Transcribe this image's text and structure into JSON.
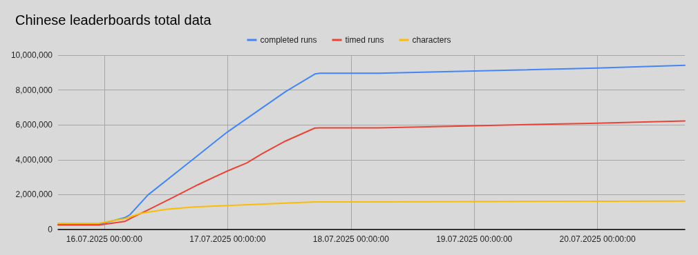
{
  "chart_data": {
    "type": "line",
    "title": "Chinese leaderboards total data",
    "xlim": [
      "2025-07-15T15:00",
      "2025-07-20T17:00"
    ],
    "xticks": [
      {
        "value": "2025-07-16",
        "label": "16.07.2025 00:00:00"
      },
      {
        "value": "2025-07-17",
        "label": "17.07.2025 00:00:00"
      },
      {
        "value": "2025-07-18",
        "label": "18.07.2025 00:00:00"
      },
      {
        "value": "2025-07-19",
        "label": "19.07.2025 00:00:00"
      },
      {
        "value": "2025-07-20",
        "label": "20.07.2025 00:00:00"
      }
    ],
    "ylim": [
      0,
      10000000
    ],
    "yticks": [
      {
        "value": 0,
        "label": "0"
      },
      {
        "value": 2000000,
        "label": "2,000,000"
      },
      {
        "value": 4000000,
        "label": "4,000,000"
      },
      {
        "value": 6000000,
        "label": "6,000,000"
      },
      {
        "value": 8000000,
        "label": "8,000,000"
      },
      {
        "value": 10000000,
        "label": "10,000,000"
      }
    ],
    "grid": true,
    "legend": "top",
    "marker": "none",
    "line_style": "solid",
    "series": [
      {
        "name": "completed runs",
        "color": "#4285f4",
        "x": [
          "2025-07-15T15:00",
          "2025-07-15T23:00",
          "2025-07-16T04:00",
          "2025-07-16T05:00",
          "2025-07-16T08:30",
          "2025-07-16T17:30",
          "2025-07-16T22:00",
          "2025-07-17T00:00",
          "2025-07-17T06:45",
          "2025-07-17T11:15",
          "2025-07-17T17:00",
          "2025-07-17T18:00",
          "2025-07-18T05:30",
          "2025-07-19T00:00",
          "2025-07-20T00:00",
          "2025-07-20T17:00"
        ],
        "values": [
          300000,
          300000,
          680000,
          850000,
          1980000,
          4080000,
          5140000,
          5600000,
          6980000,
          7900000,
          8920000,
          8960000,
          8960000,
          9090000,
          9260000,
          9420000
        ]
      },
      {
        "name": "timed runs",
        "color": "#ea4335",
        "x": [
          "2025-07-15T15:00",
          "2025-07-15T23:00",
          "2025-07-16T04:00",
          "2025-07-16T05:15",
          "2025-07-16T08:30",
          "2025-07-16T13:00",
          "2025-07-16T18:15",
          "2025-07-16T22:00",
          "2025-07-17T00:00",
          "2025-07-17T03:45",
          "2025-07-17T06:45",
          "2025-07-17T11:15",
          "2025-07-17T17:00",
          "2025-07-17T18:00",
          "2025-07-18T05:30",
          "2025-07-19T00:00",
          "2025-07-20T00:00",
          "2025-07-20T17:00"
        ],
        "values": [
          260000,
          260000,
          460000,
          660000,
          1120000,
          1780000,
          2570000,
          3090000,
          3360000,
          3820000,
          4350000,
          5070000,
          5820000,
          5830000,
          5830000,
          5950000,
          6100000,
          6230000
        ]
      },
      {
        "name": "characters",
        "color": "#fbbc04",
        "x": [
          "2025-07-15T15:00",
          "2025-07-15T23:00",
          "2025-07-16T02:30",
          "2025-07-16T04:00",
          "2025-07-16T07:00",
          "2025-07-16T12:00",
          "2025-07-16T17:30",
          "2025-07-17T00:00",
          "2025-07-17T11:15",
          "2025-07-17T17:00",
          "2025-07-19T00:00",
          "2025-07-20T17:00"
        ],
        "values": [
          360000,
          360000,
          550000,
          620000,
          920000,
          1160000,
          1290000,
          1370000,
          1510000,
          1580000,
          1600000,
          1630000
        ]
      }
    ]
  }
}
